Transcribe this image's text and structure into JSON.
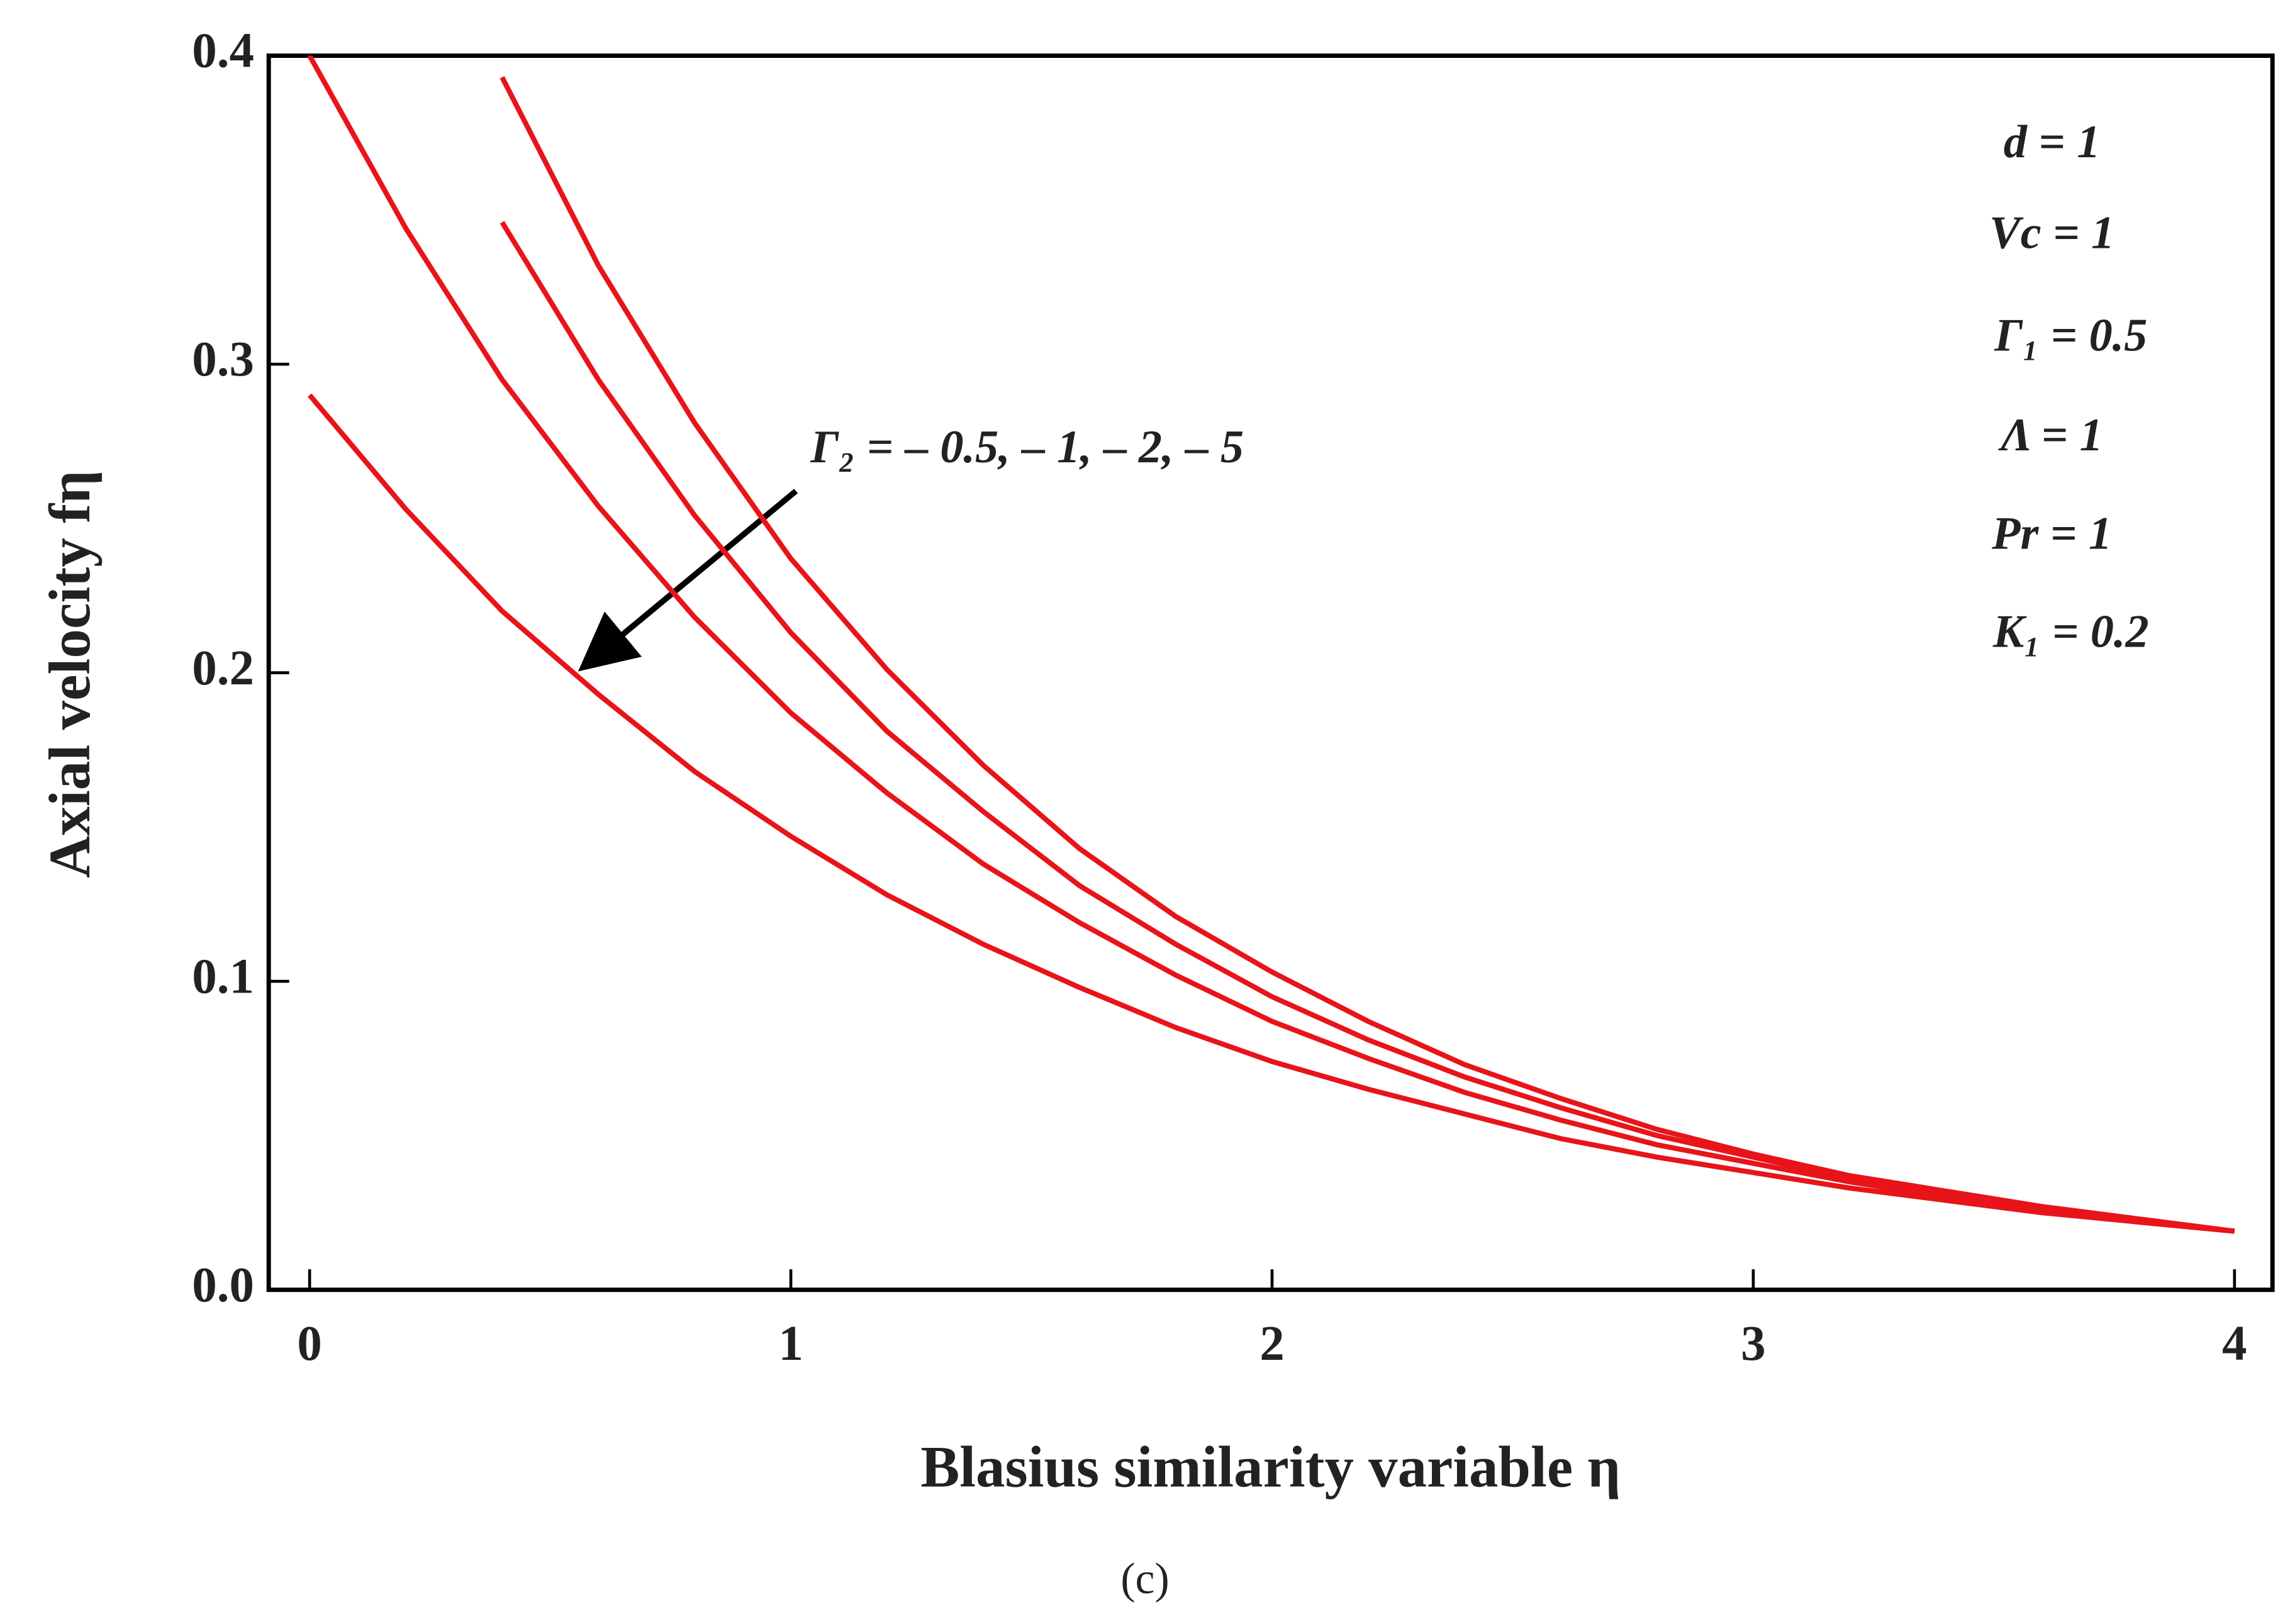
{
  "chart_data": {
    "type": "line",
    "x_label": "Blasius similarity variable η",
    "y_label": "Axial velocity fη",
    "caption": "(c)",
    "annotations": [
      "Γ₂  = – 0.5, – 1, – 2, – 5",
      "d = 1",
      "Vc = 1",
      "Γ₁ = 0.5",
      "Λ = 1",
      "Pr = 1",
      "K₁ = 0.2"
    ],
    "x": [
      0,
      0.2,
      0.4,
      0.6,
      0.8,
      1.0,
      1.2,
      1.4,
      1.6,
      1.8,
      2.0,
      2.2,
      2.4,
      2.6,
      2.8,
      3.0,
      3.2,
      3.4,
      3.6,
      3.8,
      4.0
    ],
    "series": [
      {
        "color": "#e8141a",
        "values": [
          0.29,
          0.253,
          0.22,
          0.193,
          0.168,
          0.147,
          0.128,
          0.112,
          0.098,
          0.085,
          0.074,
          0.065,
          0.057,
          0.049,
          0.043,
          0.038,
          0.033,
          0.029,
          0.025,
          0.022,
          0.019
        ]
      },
      {
        "color": "#e8141a",
        "values": [
          0.4,
          0.344,
          0.295,
          0.254,
          0.218,
          0.187,
          0.161,
          0.138,
          0.119,
          0.102,
          0.087,
          0.075,
          0.064,
          0.055,
          0.047,
          0.041,
          0.035,
          0.03,
          0.026,
          0.022,
          0.019
        ]
      },
      {
        "color": "#e8141a",
        "values": [
          null,
          null,
          0.346,
          0.295,
          0.251,
          0.213,
          0.181,
          0.155,
          0.131,
          0.112,
          0.095,
          0.081,
          0.069,
          0.059,
          0.05,
          0.043,
          0.036,
          0.031,
          0.026,
          0.022,
          0.019
        ]
      },
      {
        "color": "#e8141a",
        "values": [
          null,
          null,
          0.393,
          0.332,
          0.281,
          0.237,
          0.201,
          0.17,
          0.143,
          0.121,
          0.103,
          0.087,
          0.073,
          0.062,
          0.052,
          0.044,
          0.037,
          0.032,
          0.027,
          0.023,
          0.019
        ]
      }
    ],
    "xlim": [
      0,
      4
    ],
    "ylim": [
      0,
      0.4
    ],
    "xticks": [
      0,
      1,
      2,
      3,
      4
    ],
    "yticks": [
      {
        "value": 0,
        "label": "0.0"
      },
      0.1,
      0.2,
      0.3,
      0.4
    ]
  }
}
